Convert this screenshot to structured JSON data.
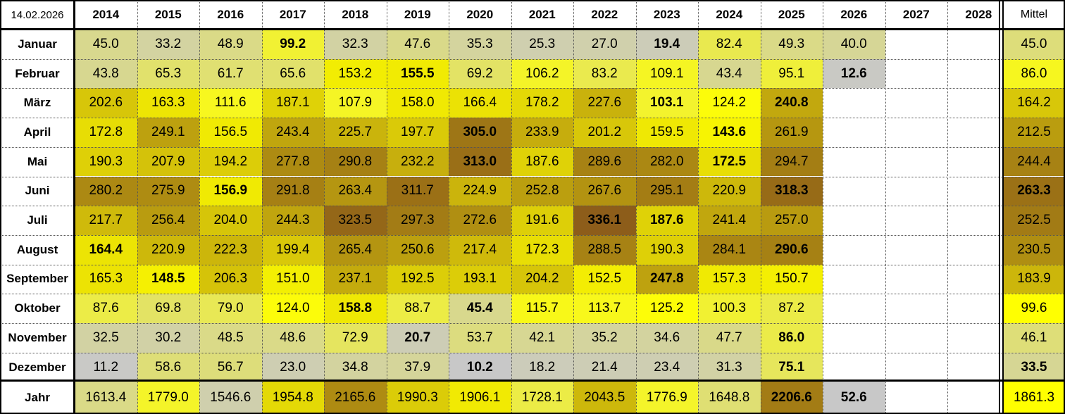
{
  "date": "14.02.2026",
  "mittel_label": "Mittel",
  "year_label": "Jahr",
  "years": [
    "2014",
    "2015",
    "2016",
    "2017",
    "2018",
    "2019",
    "2020",
    "2021",
    "2022",
    "2023",
    "2024",
    "2025",
    "2026",
    "2027",
    "2028"
  ],
  "months": [
    "Januar",
    "Februar",
    "März",
    "April",
    "Mai",
    "Juni",
    "Juli",
    "August",
    "September",
    "Oktober",
    "November",
    "Dezember"
  ],
  "values": [
    [
      "45.0",
      "33.2",
      "48.9",
      "99.2",
      "32.3",
      "47.6",
      "35.3",
      "25.3",
      "27.0",
      "19.4",
      "82.4",
      "49.3",
      "40.0",
      "",
      ""
    ],
    [
      "43.8",
      "65.3",
      "61.7",
      "65.6",
      "153.2",
      "155.5",
      "69.2",
      "106.2",
      "83.2",
      "109.1",
      "43.4",
      "95.1",
      "12.6",
      "",
      ""
    ],
    [
      "202.6",
      "163.3",
      "111.6",
      "187.1",
      "107.9",
      "158.0",
      "166.4",
      "178.2",
      "227.6",
      "103.1",
      "124.2",
      "240.8",
      "",
      "",
      ""
    ],
    [
      "172.8",
      "249.1",
      "156.5",
      "243.4",
      "225.7",
      "197.7",
      "305.0",
      "233.9",
      "201.2",
      "159.5",
      "143.6",
      "261.9",
      "",
      "",
      ""
    ],
    [
      "190.3",
      "207.9",
      "194.2",
      "277.8",
      "290.8",
      "232.2",
      "313.0",
      "187.6",
      "289.6",
      "282.0",
      "172.5",
      "294.7",
      "",
      "",
      ""
    ],
    [
      "280.2",
      "275.9",
      "156.9",
      "291.8",
      "263.4",
      "311.7",
      "224.9",
      "252.8",
      "267.6",
      "295.1",
      "220.9",
      "318.3",
      "",
      "",
      ""
    ],
    [
      "217.7",
      "256.4",
      "204.0",
      "244.3",
      "323.5",
      "297.3",
      "272.6",
      "191.6",
      "336.1",
      "187.6",
      "241.4",
      "257.0",
      "",
      "",
      ""
    ],
    [
      "164.4",
      "220.9",
      "222.3",
      "199.4",
      "265.4",
      "250.6",
      "217.4",
      "172.3",
      "288.5",
      "190.3",
      "284.1",
      "290.6",
      "",
      "",
      ""
    ],
    [
      "165.3",
      "148.5",
      "206.3",
      "151.0",
      "237.1",
      "192.5",
      "193.1",
      "204.2",
      "152.5",
      "247.8",
      "157.3",
      "150.7",
      "",
      "",
      ""
    ],
    [
      "87.6",
      "69.8",
      "79.0",
      "124.0",
      "158.8",
      "88.7",
      "45.4",
      "115.7",
      "113.7",
      "125.2",
      "100.3",
      "87.2",
      "",
      "",
      ""
    ],
    [
      "32.5",
      "30.2",
      "48.5",
      "48.6",
      "72.9",
      "20.7",
      "53.7",
      "42.1",
      "35.2",
      "34.6",
      "47.7",
      "86.0",
      "",
      "",
      ""
    ],
    [
      "11.2",
      "58.6",
      "56.7",
      "23.0",
      "34.8",
      "37.9",
      "10.2",
      "18.2",
      "21.4",
      "23.4",
      "31.3",
      "75.1",
      "",
      "",
      ""
    ]
  ],
  "mittel": [
    "45.0",
    "86.0",
    "164.2",
    "212.5",
    "244.4",
    "263.3",
    "252.5",
    "230.5",
    "183.9",
    "99.6",
    "46.1",
    "33.5"
  ],
  "year_totals": [
    "1613.4",
    "1779.0",
    "1546.6",
    "1954.8",
    "2165.6",
    "1990.3",
    "1906.1",
    "1728.1",
    "2043.5",
    "1776.9",
    "1648.8",
    "2206.6",
    "52.6",
    "",
    ""
  ],
  "year_mittel": "1861.3",
  "bold_cells": [
    [
      0,
      3
    ],
    [
      0,
      9
    ],
    [
      1,
      5
    ],
    [
      1,
      12
    ],
    [
      2,
      9
    ],
    [
      2,
      11
    ],
    [
      3,
      6
    ],
    [
      3,
      10
    ],
    [
      4,
      6
    ],
    [
      4,
      10
    ],
    [
      5,
      2
    ],
    [
      5,
      11
    ],
    [
      6,
      8
    ],
    [
      6,
      9
    ],
    [
      7,
      0
    ],
    [
      7,
      11
    ],
    [
      8,
      1
    ],
    [
      8,
      9
    ],
    [
      9,
      4
    ],
    [
      9,
      6
    ],
    [
      10,
      5
    ],
    [
      10,
      11
    ],
    [
      11,
      6
    ],
    [
      11,
      11
    ]
  ],
  "bold_mittel": [
    5,
    11
  ],
  "bold_total": [
    11,
    12
  ],
  "colors": {
    "yellow": "#ffff00",
    "brown": "#8b5a1a",
    "gray": "#c8c8c8",
    "border": "#000000",
    "grid": "#888888"
  }
}
